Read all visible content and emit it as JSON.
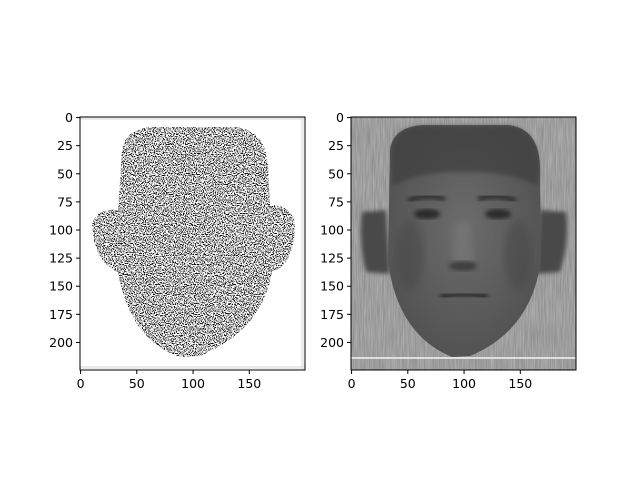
{
  "figure": {
    "panels": [
      {
        "name": "sampled-mask-panel",
        "x_ticks": [
          "0",
          "50",
          "100",
          "150"
        ],
        "y_ticks": [
          "0",
          "25",
          "50",
          "75",
          "100",
          "125",
          "150",
          "175",
          "200"
        ]
      },
      {
        "name": "reconstructed-face-panel",
        "x_ticks": [
          "0",
          "50",
          "100",
          "150"
        ],
        "y_ticks": [
          "0",
          "25",
          "50",
          "75",
          "100",
          "125",
          "150",
          "175",
          "200"
        ]
      }
    ]
  }
}
